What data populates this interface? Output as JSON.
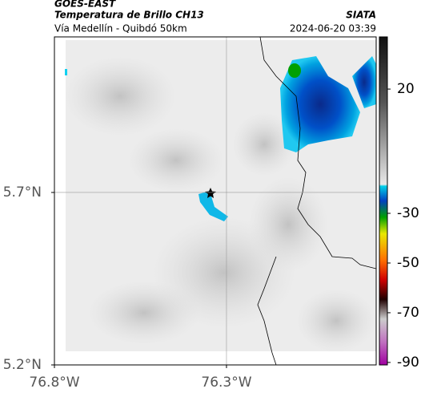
{
  "header": {
    "product": "GOES-EAST",
    "variable": "Temperatura de Brillo CH13",
    "region": "Vía Medellín - Quibdó 50km",
    "source": "SIATA",
    "timestamp": "2024-06-20 03:39"
  },
  "map": {
    "xlim": [
      -76.8,
      -75.865
    ],
    "ylim": [
      5.2,
      6.151
    ],
    "xticks": [
      {
        "value": -76.8,
        "label": "76.8°W"
      },
      {
        "value": -76.3,
        "label": "76.3°W"
      }
    ],
    "yticks": [
      {
        "value": 5.7,
        "label": "5.7°N"
      },
      {
        "value": 5.2,
        "label": "5.2°N"
      }
    ]
  },
  "colorbar": {
    "lim": [
      41,
      -91
    ],
    "ticks": [
      20,
      -30,
      -50,
      -70,
      -90
    ]
  }
}
